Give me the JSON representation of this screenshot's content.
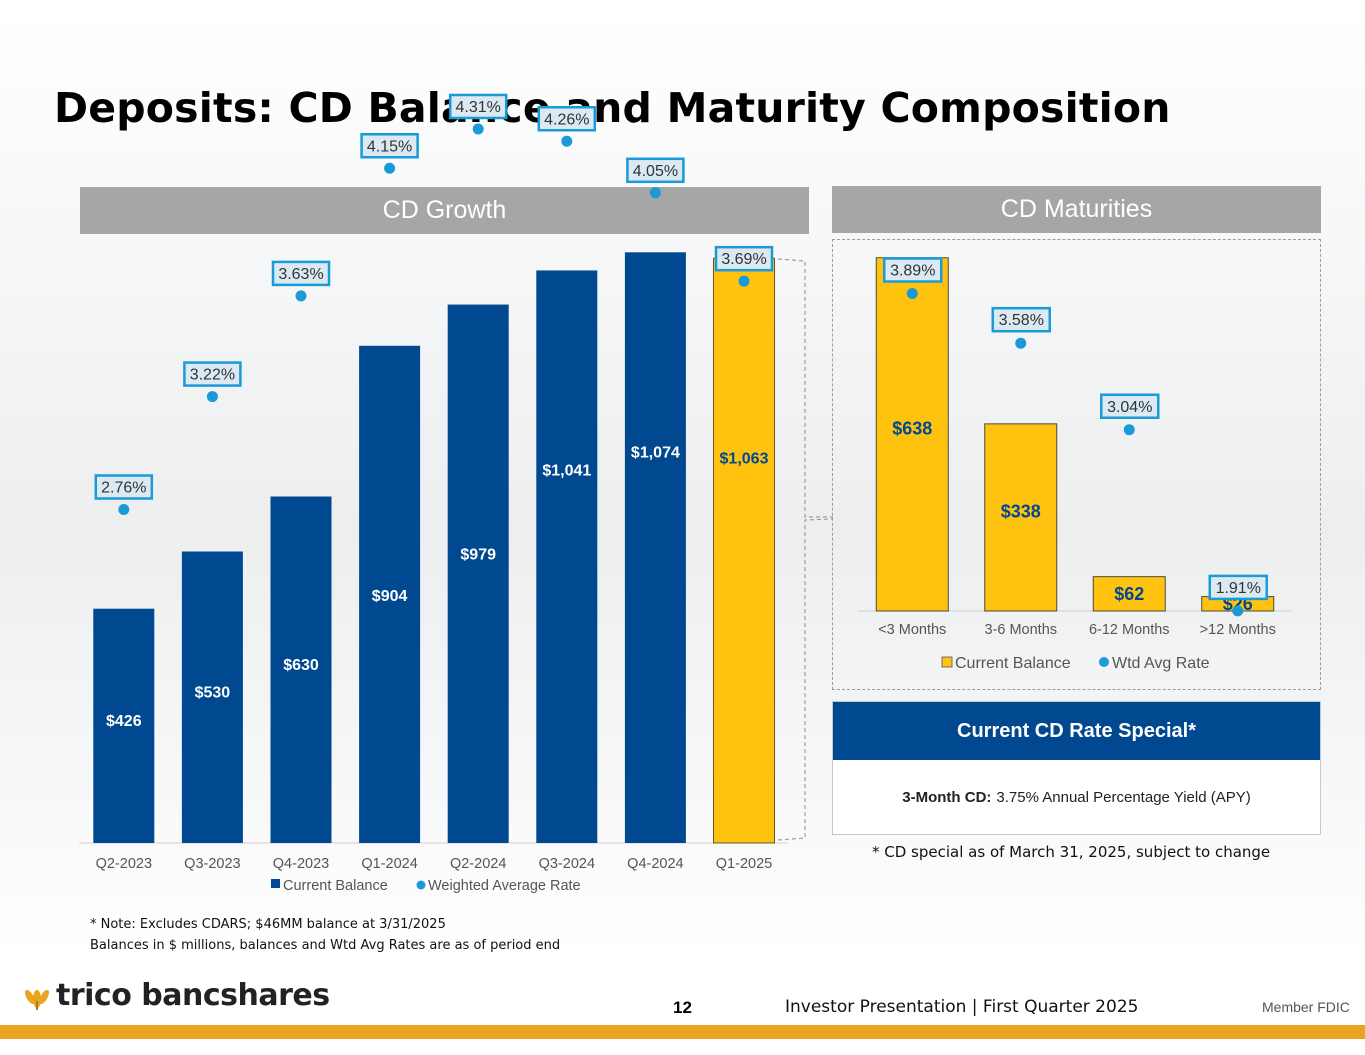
{
  "title": "Deposits: CD Balance and Maturity Composition",
  "colors": {
    "blue": "#004990",
    "gold": "#ffc20e",
    "rate": "#1a9ad6",
    "header_gray": "#a6a6a6"
  },
  "chart_data": [
    {
      "type": "bar",
      "title": "CD Growth",
      "categories": [
        "Q2-2023",
        "Q3-2023",
        "Q4-2023",
        "Q1-2024",
        "Q2-2024",
        "Q3-2024",
        "Q4-2024",
        "Q1-2025"
      ],
      "series": [
        {
          "name": "Current Balance",
          "values": [
            426,
            530,
            630,
            904,
            979,
            1041,
            1074,
            1063
          ],
          "labels": [
            "$426",
            "$530",
            "$630",
            "$904",
            "$979",
            "$1,041",
            "$1,074",
            "$1,063"
          ]
        },
        {
          "name": "Weighted Average Rate",
          "values": [
            2.76,
            3.22,
            3.63,
            4.15,
            4.31,
            4.26,
            4.05,
            3.69
          ],
          "labels": [
            "2.76%",
            "3.22%",
            "3.63%",
            "4.15%",
            "4.31%",
            "4.26%",
            "4.05%",
            "3.69%"
          ]
        }
      ],
      "highlight_category": "Q1-2025",
      "legend": "bottom",
      "grid": false
    },
    {
      "type": "bar",
      "title": "CD Maturities",
      "categories": [
        "<3 Months",
        "3-6 Months",
        "6-12 Months",
        ">12 Months"
      ],
      "series": [
        {
          "name": "Current Balance",
          "values": [
            638,
            338,
            62,
            26
          ],
          "labels": [
            "$638",
            "$338",
            "$62",
            "$26"
          ]
        },
        {
          "name": "Wtd Avg Rate",
          "values": [
            3.89,
            3.58,
            3.04,
            1.91
          ],
          "labels": [
            "3.89%",
            "3.58%",
            "3.04%",
            "1.91%"
          ]
        }
      ],
      "legend": "bottom",
      "grid": false
    }
  ],
  "special": {
    "title": "Current CD Rate Special*",
    "term": "3-Month CD:",
    "text": "3.75% Annual Percentage Yield (APY)",
    "note": "* CD special as of March 31, 2025, subject to change"
  },
  "notes": [
    "* Note: Excludes CDARS; $46MM balance at 3/31/2025",
    "Balances in $ millions, balances and Wtd Avg Rates are as of period end"
  ],
  "footer": {
    "logo_text": "trico bancshares",
    "page_number": "12",
    "text": "Investor Presentation  |  First Quarter 2025",
    "member": "Member FDIC"
  }
}
